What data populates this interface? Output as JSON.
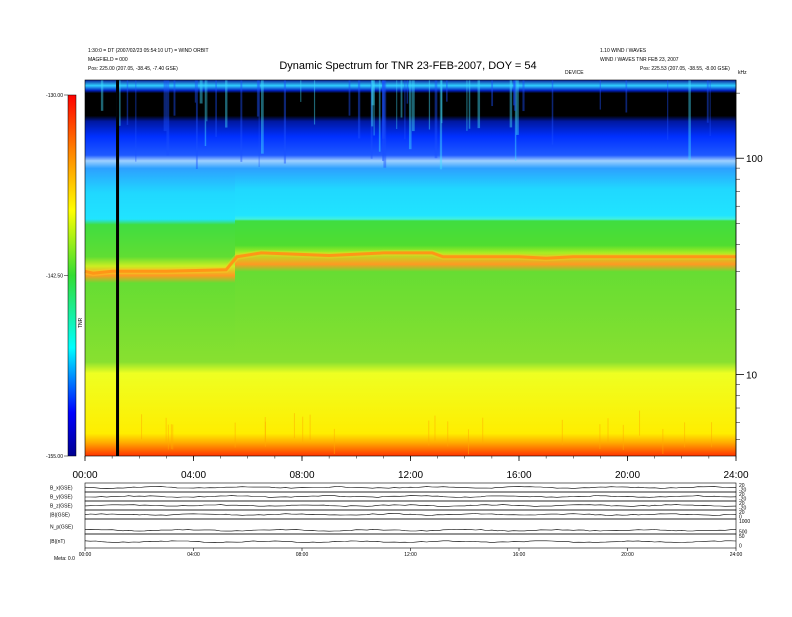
{
  "chart_data": {
    "type": "heatmap",
    "title": "Dynamic Spectrum for TNR 23-FEB-2007, DOY = 54",
    "x_ticks": [
      "00:00",
      "04:00",
      "08:00",
      "12:00",
      "16:00",
      "20:00",
      "24:00"
    ],
    "x_range_hours": [
      0,
      24
    ],
    "y_scale": "log",
    "y_unit": "kHz",
    "y_ticks": [
      "100",
      "10"
    ],
    "y_tick_values": [
      100,
      10
    ],
    "y_range": [
      4.2,
      230
    ],
    "colorbar": {
      "label": "TNR",
      "ticks": [
        "-130.00",
        "-142.50",
        "-155.00"
      ],
      "range": [
        -155,
        -130
      ]
    },
    "cutoff_line_khz": [
      [
        0.0,
        30
      ],
      [
        0.3,
        29.4
      ],
      [
        1.0,
        30
      ],
      [
        3.0,
        30
      ],
      [
        5.2,
        30.5
      ],
      [
        5.6,
        35
      ],
      [
        6.5,
        36.5
      ],
      [
        9.0,
        35.5
      ],
      [
        11.0,
        36.5
      ],
      [
        12.8,
        36.5
      ],
      [
        13.2,
        35
      ],
      [
        16.0,
        35
      ],
      [
        17.0,
        34.5
      ],
      [
        18.0,
        35
      ],
      [
        20.0,
        35
      ],
      [
        22.0,
        35
      ],
      [
        24.0,
        35
      ]
    ],
    "data_gap_hour": 1.2,
    "header": {
      "left_line1": "1:30:0 = DT (2007/02/23 05:54:10 UT) = WIND ORBIT",
      "left_line2": "MAGFIELD = 000",
      "left_line3": "Pos: 225.00 (207.05, -38.45, -7.40 GSE)",
      "right_line1": "1.10 WIND / WAVES",
      "right_line2": "WIND / WAVES TNR FEB 23, 2007",
      "right_line3": "Pos: 225.53 (207.05, -38.55, -8.00 GSE)",
      "top_center_small": "DEVICE"
    },
    "panels": [
      {
        "label": "B_x(GSE)",
        "right_ticks": [
          "20",
          "-20"
        ]
      },
      {
        "label": "B_y(GSE)",
        "right_ticks": [
          "20",
          "-20"
        ]
      },
      {
        "label": "B_z(GSE)",
        "right_ticks": [
          "20",
          "-20"
        ]
      },
      {
        "label": "|B|(GSE)",
        "right_ticks": [
          "20",
          "0"
        ]
      },
      {
        "label": "N_p(GSE)",
        "right_ticks": [
          "1000",
          "500"
        ]
      },
      {
        "label": "|B|(nT)",
        "right_ticks": [
          "50",
          "0"
        ]
      }
    ],
    "bottom_x_ticks": [
      "00:00",
      "04:00",
      "08:00",
      "12:00",
      "16:00",
      "20:00",
      "24:00"
    ],
    "bottom_axis_label": "Meta: 0.0"
  },
  "colors": {
    "background": "#ffffff",
    "cyan": "#22e0ff",
    "green": "#55dd33",
    "yellow": "#ffff22",
    "blue": "#0033ff"
  }
}
